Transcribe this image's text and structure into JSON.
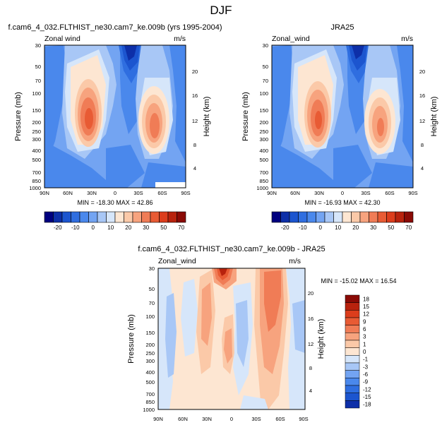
{
  "page_title": "DJF",
  "scale_upper": [
    {
      "color": "#00007f",
      "label": ""
    },
    {
      "color": "#0d2fa8",
      "label": "-20"
    },
    {
      "color": "#1c55cf",
      "label": ""
    },
    {
      "color": "#2f6ee0",
      "label": "-10"
    },
    {
      "color": "#4a88ec",
      "label": ""
    },
    {
      "color": "#73a4f2",
      "label": "0"
    },
    {
      "color": "#a8c7f6",
      "label": ""
    },
    {
      "color": "#d6e6fa",
      "label": "10"
    },
    {
      "color": "#fde6d2",
      "label": ""
    },
    {
      "color": "#fbc9a8",
      "label": "20"
    },
    {
      "color": "#f7a37e",
      "label": ""
    },
    {
      "color": "#f07c56",
      "label": "30"
    },
    {
      "color": "#e85b34",
      "label": ""
    },
    {
      "color": "#dc3d1c",
      "label": "50"
    },
    {
      "color": "#b8220d",
      "label": ""
    },
    {
      "color": "#8a0a05",
      "label": "70"
    }
  ],
  "scale_lower": [
    {
      "color": "#8a0a05",
      "label": "18"
    },
    {
      "color": "#b8220d",
      "label": "15"
    },
    {
      "color": "#dc3d1c",
      "label": "12"
    },
    {
      "color": "#e85b34",
      "label": "9"
    },
    {
      "color": "#f07c56",
      "label": "6"
    },
    {
      "color": "#f7a37e",
      "label": "3"
    },
    {
      "color": "#fbc9a8",
      "label": "1"
    },
    {
      "color": "#fde6d2",
      "label": "0"
    },
    {
      "color": "#d6e6fa",
      "label": "-1"
    },
    {
      "color": "#a8c7f6",
      "label": "-3"
    },
    {
      "color": "#73a4f2",
      "label": "-6"
    },
    {
      "color": "#4a88ec",
      "label": "-9"
    },
    {
      "color": "#2f6ee0",
      "label": "-12"
    },
    {
      "color": "#1c55cf",
      "label": "-15"
    },
    {
      "color": "#0d2fa8",
      "label": "-18"
    }
  ],
  "chart_data": [
    {
      "type": "heatmap",
      "title": "f.cam6_4_032.FLTHIST_ne30.cam7_ke.009b (yrs 1995-2004)",
      "left_label": "Zonal wind",
      "right_label": "m/s",
      "ylabel": "Pressure (mb)",
      "y2label": "Height (km)",
      "x_ticks": [
        "90N",
        "60N",
        "30N",
        "0",
        "30S",
        "60S",
        "90S"
      ],
      "y_ticks": [
        "30",
        "50",
        "70",
        "100",
        "150",
        "200",
        "250",
        "300",
        "400",
        "500",
        "700",
        "850",
        "1000"
      ],
      "y2_ticks": [
        "20",
        "16",
        "12",
        "8",
        "4"
      ],
      "ylim": [
        1000,
        30
      ],
      "xlim": [
        "90N",
        "90S"
      ],
      "min": -18.3,
      "max": 42.86,
      "stats_text": "MIN = -18.30   MAX = 42.86",
      "colorbar_labels": [
        "-20",
        "-10",
        "0",
        "10",
        "20",
        "30",
        "50",
        "70"
      ],
      "features": [
        {
          "kind": "westerly jet",
          "lat": "30N",
          "pressure_mb": 200,
          "peak_ms": 42.86
        },
        {
          "kind": "westerly jet",
          "lat": "45S",
          "pressure_mb": 200,
          "peak_ms": 30
        },
        {
          "kind": "easterly maximum",
          "lat": "10S",
          "pressure_mb": 30,
          "peak_ms": -18.3
        }
      ]
    },
    {
      "type": "heatmap",
      "title": "JRA25",
      "left_label": "Zonal_wind",
      "right_label": "m/s",
      "ylabel": "Pressure (mb)",
      "y2label": "Height (km)",
      "x_ticks": [
        "90N",
        "60N",
        "30N",
        "0",
        "30S",
        "60S",
        "90S"
      ],
      "y_ticks": [
        "30",
        "50",
        "70",
        "100",
        "150",
        "200",
        "250",
        "300",
        "400",
        "500",
        "700",
        "850",
        "1000"
      ],
      "y2_ticks": [
        "20",
        "16",
        "12",
        "8",
        "4"
      ],
      "ylim": [
        1000,
        30
      ],
      "xlim": [
        "90N",
        "90S"
      ],
      "min": -16.93,
      "max": 42.3,
      "stats_text": "MIN = -16.93   MAX = 42.30",
      "colorbar_labels": [
        "-20",
        "-10",
        "0",
        "10",
        "20",
        "30",
        "50",
        "70"
      ],
      "features": [
        {
          "kind": "westerly jet",
          "lat": "30N",
          "pressure_mb": 200,
          "peak_ms": 42.3
        },
        {
          "kind": "westerly jet",
          "lat": "45S",
          "pressure_mb": 200,
          "peak_ms": 28
        },
        {
          "kind": "easterly maximum",
          "lat": "10S",
          "pressure_mb": 30,
          "peak_ms": -16.93
        }
      ]
    },
    {
      "type": "heatmap",
      "title": "f.cam6_4_032.FLTHIST_ne30.cam7_ke.009b - JRA25",
      "left_label": "Zonal_wind",
      "right_label": "m/s",
      "ylabel": "Pressure (mb)",
      "y2label": "Height (km)",
      "x_ticks": [
        "90N",
        "60N",
        "30N",
        "0",
        "30S",
        "60S",
        "90S"
      ],
      "y_ticks": [
        "30",
        "50",
        "70",
        "100",
        "150",
        "200",
        "250",
        "300",
        "400",
        "500",
        "700",
        "850",
        "1000"
      ],
      "y2_ticks": [
        "20",
        "16",
        "12",
        "8",
        "4"
      ],
      "ylim": [
        1000,
        30
      ],
      "xlim": [
        "90N",
        "90S"
      ],
      "min": -15.02,
      "max": 16.54,
      "stats_text": "MIN = -15.02   MAX =  16.54",
      "colorbar_labels": [
        "18",
        "15",
        "12",
        "9",
        "6",
        "3",
        "1",
        "0",
        "-1",
        "-3",
        "-6",
        "-9",
        "-12",
        "-15",
        "-18"
      ],
      "features": [
        {
          "kind": "positive difference",
          "lat": "5N",
          "pressure_mb": 30,
          "peak_ms": 16.54
        },
        {
          "kind": "positive difference",
          "lat": "55S",
          "pressure_mb": 100,
          "peak_ms": 8
        },
        {
          "kind": "negative difference",
          "lat": "20S",
          "pressure_mb": 100,
          "peak_ms": -6
        }
      ]
    }
  ]
}
